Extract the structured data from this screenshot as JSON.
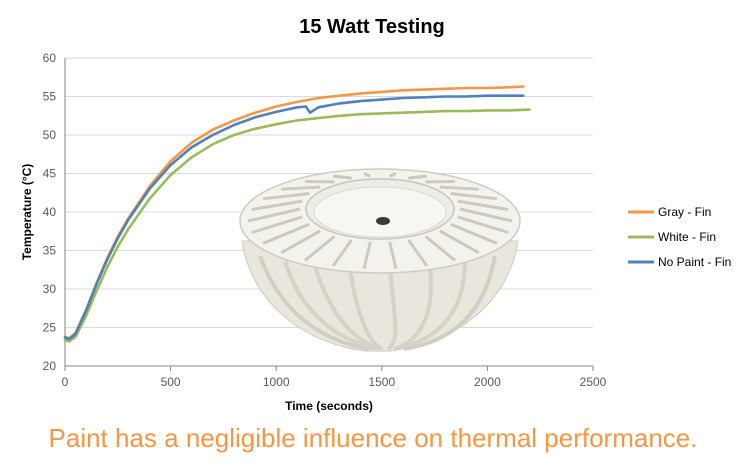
{
  "chart_data": {
    "type": "line",
    "title": "15 Watt Testing",
    "xlabel": "Time (seconds)",
    "ylabel": "Temperature (°C)",
    "xlim": [
      0,
      2500
    ],
    "ylim": [
      20,
      60
    ],
    "xticks": [
      0,
      500,
      1000,
      1500,
      2000,
      2500
    ],
    "yticks": [
      20,
      25,
      30,
      35,
      40,
      45,
      50,
      55,
      60
    ],
    "grid": "horizontal",
    "legend_position": "right",
    "series": [
      {
        "name": "Gray - Fin",
        "color": "#f79646",
        "x": [
          0,
          20,
          50,
          100,
          150,
          200,
          250,
          300,
          400,
          500,
          600,
          700,
          800,
          900,
          1000,
          1100,
          1200,
          1300,
          1400,
          1500,
          1600,
          1700,
          1800,
          1900,
          2000,
          2100,
          2170
        ],
        "y": [
          23.8,
          23.6,
          24.3,
          27.3,
          30.8,
          34.0,
          36.8,
          39.2,
          43.3,
          46.6,
          49.0,
          50.7,
          51.9,
          52.9,
          53.7,
          54.3,
          54.8,
          55.1,
          55.4,
          55.6,
          55.8,
          55.9,
          56.0,
          56.1,
          56.1,
          56.2,
          56.3
        ]
      },
      {
        "name": "White - Fin",
        "color": "#9bbb59",
        "x": [
          0,
          20,
          50,
          100,
          150,
          200,
          250,
          300,
          400,
          500,
          600,
          700,
          800,
          900,
          1000,
          1100,
          1200,
          1300,
          1400,
          1500,
          1600,
          1700,
          1800,
          1900,
          2000,
          2100,
          2200
        ],
        "y": [
          23.4,
          23.2,
          23.8,
          26.5,
          29.8,
          32.8,
          35.5,
          37.8,
          41.7,
          44.8,
          47.1,
          48.8,
          50.0,
          50.8,
          51.4,
          51.9,
          52.2,
          52.5,
          52.7,
          52.8,
          52.9,
          53.0,
          53.1,
          53.1,
          53.2,
          53.2,
          53.3
        ]
      },
      {
        "name": "No Paint - Fin",
        "color": "#4f81bd",
        "x": [
          0,
          20,
          50,
          100,
          150,
          200,
          250,
          300,
          400,
          500,
          600,
          700,
          800,
          900,
          1000,
          1100,
          1140,
          1160,
          1200,
          1300,
          1400,
          1500,
          1600,
          1700,
          1800,
          1900,
          2000,
          2100,
          2170
        ],
        "y": [
          23.7,
          23.5,
          24.2,
          27.2,
          30.7,
          33.8,
          36.6,
          39.0,
          43.0,
          46.1,
          48.4,
          50.0,
          51.3,
          52.3,
          53.0,
          53.6,
          53.7,
          52.9,
          53.6,
          54.1,
          54.4,
          54.6,
          54.8,
          54.9,
          55.0,
          55.0,
          55.1,
          55.1,
          55.1
        ]
      }
    ]
  },
  "caption": {
    "text": "Paint has a negligible influence on thermal performance.",
    "color": "#f79646"
  },
  "overlay_image": {
    "icon": "led-heatsink-photo",
    "color": "#f1efea"
  }
}
